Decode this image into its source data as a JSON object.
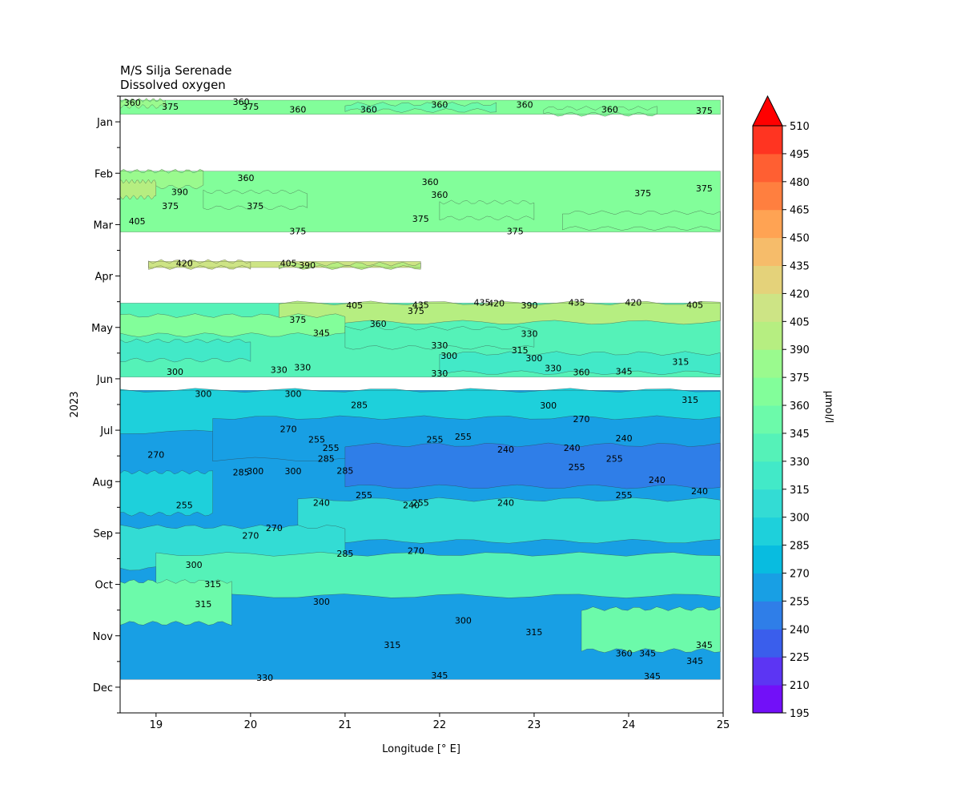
{
  "chart_data": {
    "type": "heatmap",
    "title": "M/S Silja Serenade",
    "subtitle": "Dissolved oxygen",
    "xlabel": "Longitude [° E]",
    "ylabel": "2023",
    "xlim": [
      18.62,
      25.0
    ],
    "x_ticks": [
      19,
      20,
      21,
      22,
      23,
      24,
      25
    ],
    "y_ticks": [
      "Jan",
      "Feb",
      "Mar",
      "Apr",
      "May",
      "Jun",
      "Jul",
      "Aug",
      "Sep",
      "Oct",
      "Nov",
      "Dec"
    ],
    "colorbar": {
      "label": "µmol/l",
      "extend": "max",
      "levels": [
        195,
        210,
        225,
        240,
        255,
        270,
        285,
        300,
        315,
        330,
        345,
        360,
        375,
        390,
        405,
        420,
        435,
        450,
        465,
        480,
        495,
        510
      ],
      "colors": [
        "#7210f8",
        "#5c35f3",
        "#3a5eec",
        "#2f7ee8",
        "#189fe4",
        "#08bce0",
        "#1ed0db",
        "#33dcd4",
        "#42e9c8",
        "#55f2b8",
        "#6cfaaa",
        "#82fe9a",
        "#9afa8e",
        "#b6ee81",
        "#cde485",
        "#e4d27a",
        "#f6bc6a",
        "#ffa353",
        "#ff7f3f",
        "#ff5f32",
        "#ff3421",
        "#ff1010"
      ],
      "extend_color": "#ff0000"
    },
    "bands": [
      {
        "y0": 0.0,
        "y1": 0.28,
        "x0": 18.62,
        "x1": 24.97,
        "base": 360,
        "patches": [
          [
            18.62,
            19.1,
            375
          ],
          [
            21.0,
            22.6,
            355
          ],
          [
            23.1,
            24.3,
            360
          ]
        ]
      },
      {
        "y0": 1.4,
        "y1": 2.6,
        "x0": 18.62,
        "x1": 24.97,
        "base": 360,
        "patches": [
          [
            18.62,
            19.5,
            380
          ],
          [
            18.62,
            19.0,
            395
          ],
          [
            19.5,
            20.6,
            370
          ],
          [
            22.0,
            23.0,
            372
          ],
          [
            23.3,
            24.97,
            372
          ]
        ]
      },
      {
        "y0": 3.18,
        "y1": 3.3,
        "x0": 18.92,
        "x1": 21.8,
        "base": 410,
        "patches": [
          [
            18.92,
            20.0,
            415
          ],
          [
            20.3,
            21.8,
            395
          ]
        ]
      },
      {
        "y0": 4.0,
        "y1": 5.46,
        "x0": 18.62,
        "x1": 24.97,
        "base": 335,
        "patches": [
          [
            20.3,
            24.97,
            400
          ],
          [
            18.62,
            21.0,
            360
          ],
          [
            21.0,
            23.0,
            338
          ],
          [
            18.62,
            20.0,
            320
          ],
          [
            22.0,
            24.97,
            318
          ]
        ]
      },
      {
        "y0": 5.72,
        "y1": 11.42,
        "x0": 18.62,
        "x1": 24.97,
        "base": 265,
        "patches": [
          [
            18.62,
            24.97,
            290
          ],
          [
            19.6,
            24.97,
            260
          ],
          [
            21.0,
            24.97,
            248
          ],
          [
            18.62,
            19.6,
            285
          ],
          [
            20.5,
            24.97,
            305
          ],
          [
            18.62,
            21.0,
            312
          ],
          [
            19.0,
            24.97,
            330
          ],
          [
            18.62,
            19.8,
            352
          ],
          [
            23.5,
            24.97,
            350
          ]
        ]
      }
    ],
    "contour_labels": [
      {
        "text": "360",
        "x": 18.75,
        "y": 0.06
      },
      {
        "text": "375",
        "x": 19.15,
        "y": 0.14
      },
      {
        "text": "360",
        "x": 19.9,
        "y": 0.05
      },
      {
        "text": "375",
        "x": 20.0,
        "y": 0.14
      },
      {
        "text": "360",
        "x": 20.5,
        "y": 0.2
      },
      {
        "text": "360",
        "x": 21.25,
        "y": 0.2
      },
      {
        "text": "360",
        "x": 22.0,
        "y": 0.1
      },
      {
        "text": "360",
        "x": 22.9,
        "y": 0.1
      },
      {
        "text": "360",
        "x": 23.8,
        "y": 0.2
      },
      {
        "text": "375",
        "x": 24.8,
        "y": 0.22
      },
      {
        "text": "360",
        "x": 19.95,
        "y": 1.55
      },
      {
        "text": "390",
        "x": 19.25,
        "y": 1.82
      },
      {
        "text": "375",
        "x": 19.15,
        "y": 2.1
      },
      {
        "text": "375",
        "x": 20.05,
        "y": 2.1
      },
      {
        "text": "360",
        "x": 21.9,
        "y": 1.63
      },
      {
        "text": "360",
        "x": 22.0,
        "y": 1.88
      },
      {
        "text": "375",
        "x": 21.8,
        "y": 2.35
      },
      {
        "text": "375",
        "x": 20.5,
        "y": 2.6
      },
      {
        "text": "375",
        "x": 22.8,
        "y": 2.6
      },
      {
        "text": "375",
        "x": 24.15,
        "y": 1.85
      },
      {
        "text": "375",
        "x": 24.8,
        "y": 1.75
      },
      {
        "text": "405",
        "x": 18.8,
        "y": 2.4
      },
      {
        "text": "420",
        "x": 19.3,
        "y": 3.23
      },
      {
        "text": "405",
        "x": 20.4,
        "y": 3.23
      },
      {
        "text": "390",
        "x": 20.6,
        "y": 3.27
      },
      {
        "text": "405",
        "x": 21.1,
        "y": 4.06
      },
      {
        "text": "435",
        "x": 21.8,
        "y": 4.05
      },
      {
        "text": "435",
        "x": 22.45,
        "y": 4.0
      },
      {
        "text": "420",
        "x": 22.6,
        "y": 4.02
      },
      {
        "text": "390",
        "x": 22.95,
        "y": 4.06
      },
      {
        "text": "435",
        "x": 23.45,
        "y": 4.0
      },
      {
        "text": "420",
        "x": 24.05,
        "y": 4.0
      },
      {
        "text": "405",
        "x": 24.7,
        "y": 4.05
      },
      {
        "text": "375",
        "x": 20.5,
        "y": 4.34
      },
      {
        "text": "375",
        "x": 21.75,
        "y": 4.17
      },
      {
        "text": "360",
        "x": 21.35,
        "y": 4.42
      },
      {
        "text": "345",
        "x": 20.75,
        "y": 4.6
      },
      {
        "text": "330",
        "x": 22.0,
        "y": 4.85
      },
      {
        "text": "330",
        "x": 22.95,
        "y": 4.62
      },
      {
        "text": "315",
        "x": 22.85,
        "y": 4.94
      },
      {
        "text": "300",
        "x": 22.1,
        "y": 5.05
      },
      {
        "text": "300",
        "x": 23.0,
        "y": 5.1
      },
      {
        "text": "330",
        "x": 20.3,
        "y": 5.33
      },
      {
        "text": "330",
        "x": 20.55,
        "y": 5.28
      },
      {
        "text": "330",
        "x": 22.0,
        "y": 5.4
      },
      {
        "text": "330",
        "x": 23.2,
        "y": 5.3
      },
      {
        "text": "360",
        "x": 23.5,
        "y": 5.38
      },
      {
        "text": "345",
        "x": 23.95,
        "y": 5.36
      },
      {
        "text": "315",
        "x": 24.55,
        "y": 5.17
      },
      {
        "text": "300",
        "x": 19.2,
        "y": 5.37
      },
      {
        "text": "300",
        "x": 19.5,
        "y": 5.8
      },
      {
        "text": "300",
        "x": 20.45,
        "y": 5.8
      },
      {
        "text": "285",
        "x": 21.15,
        "y": 6.02
      },
      {
        "text": "300",
        "x": 23.15,
        "y": 6.03
      },
      {
        "text": "270",
        "x": 23.5,
        "y": 6.3
      },
      {
        "text": "315",
        "x": 24.65,
        "y": 5.92
      },
      {
        "text": "270",
        "x": 20.4,
        "y": 6.5
      },
      {
        "text": "255",
        "x": 20.7,
        "y": 6.7
      },
      {
        "text": "255",
        "x": 20.85,
        "y": 6.87
      },
      {
        "text": "255",
        "x": 21.95,
        "y": 6.7
      },
      {
        "text": "255",
        "x": 22.25,
        "y": 6.65
      },
      {
        "text": "240",
        "x": 22.7,
        "y": 6.9
      },
      {
        "text": "240",
        "x": 23.4,
        "y": 6.87
      },
      {
        "text": "240",
        "x": 23.95,
        "y": 6.68
      },
      {
        "text": "270",
        "x": 19.0,
        "y": 7.0
      },
      {
        "text": "285",
        "x": 20.8,
        "y": 7.08
      },
      {
        "text": "285",
        "x": 21.0,
        "y": 7.32
      },
      {
        "text": "300",
        "x": 20.05,
        "y": 7.33
      },
      {
        "text": "285",
        "x": 19.9,
        "y": 7.35
      },
      {
        "text": "300",
        "x": 20.45,
        "y": 7.33
      },
      {
        "text": "255",
        "x": 23.85,
        "y": 7.08
      },
      {
        "text": "255",
        "x": 23.45,
        "y": 7.25
      },
      {
        "text": "240",
        "x": 24.3,
        "y": 7.5
      },
      {
        "text": "240",
        "x": 24.75,
        "y": 7.72
      },
      {
        "text": "255",
        "x": 23.95,
        "y": 7.8
      },
      {
        "text": "255",
        "x": 21.2,
        "y": 7.8
      },
      {
        "text": "255",
        "x": 21.8,
        "y": 7.95
      },
      {
        "text": "240",
        "x": 20.75,
        "y": 7.95
      },
      {
        "text": "240",
        "x": 21.7,
        "y": 8.0
      },
      {
        "text": "240",
        "x": 22.7,
        "y": 7.95
      },
      {
        "text": "255",
        "x": 19.3,
        "y": 8.0
      },
      {
        "text": "270",
        "x": 20.25,
        "y": 8.45
      },
      {
        "text": "270",
        "x": 20.0,
        "y": 8.6
      },
      {
        "text": "270",
        "x": 21.75,
        "y": 8.9
      },
      {
        "text": "285",
        "x": 21.0,
        "y": 8.95
      },
      {
        "text": "300",
        "x": 19.4,
        "y": 9.17
      },
      {
        "text": "315",
        "x": 19.6,
        "y": 9.55
      },
      {
        "text": "315",
        "x": 19.5,
        "y": 9.95
      },
      {
        "text": "300",
        "x": 20.75,
        "y": 9.9
      },
      {
        "text": "300",
        "x": 22.25,
        "y": 10.27
      },
      {
        "text": "315",
        "x": 23.0,
        "y": 10.5
      },
      {
        "text": "315",
        "x": 21.5,
        "y": 10.75
      },
      {
        "text": "360",
        "x": 23.95,
        "y": 10.92
      },
      {
        "text": "345",
        "x": 24.2,
        "y": 10.92
      },
      {
        "text": "345",
        "x": 24.8,
        "y": 10.75
      },
      {
        "text": "345",
        "x": 24.7,
        "y": 11.07
      },
      {
        "text": "345",
        "x": 22.0,
        "y": 11.35
      },
      {
        "text": "345",
        "x": 24.25,
        "y": 11.37
      },
      {
        "text": "330",
        "x": 20.15,
        "y": 11.4
      }
    ],
    "x_labels": [
      "19",
      "20",
      "21",
      "22",
      "23",
      "24",
      "25"
    ],
    "colorbar_ticks": [
      "195",
      "210",
      "225",
      "240",
      "255",
      "270",
      "285",
      "300",
      "315",
      "330",
      "345",
      "360",
      "375",
      "390",
      "405",
      "420",
      "435",
      "450",
      "465",
      "480",
      "495",
      "510"
    ]
  }
}
